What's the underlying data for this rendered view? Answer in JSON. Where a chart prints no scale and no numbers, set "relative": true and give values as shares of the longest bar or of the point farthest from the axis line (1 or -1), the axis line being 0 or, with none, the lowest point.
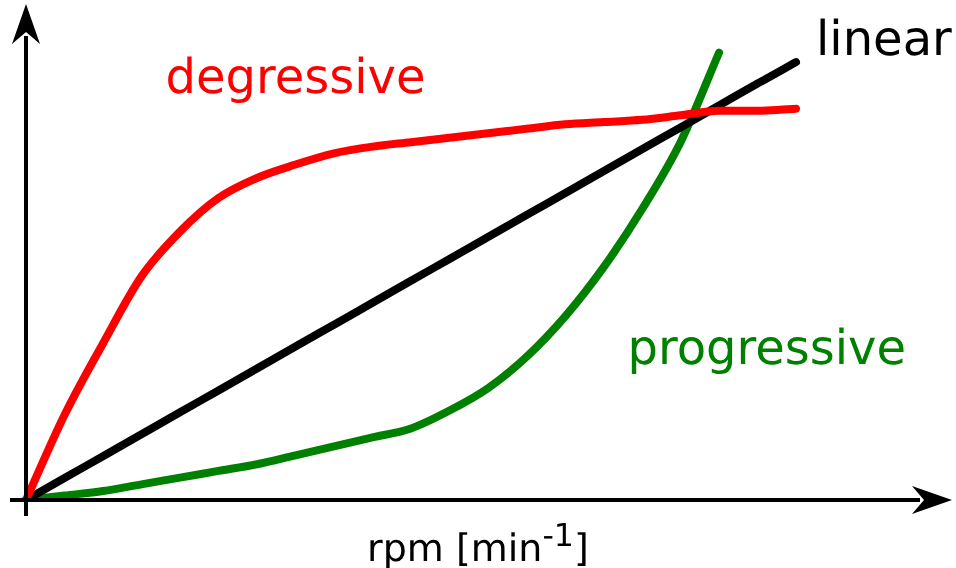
{
  "chart_data": {
    "type": "line",
    "relative": true,
    "xlabel": "rpm [min$^{-1}$]",
    "legend": false,
    "grid": false,
    "marker": "none",
    "line_style": "solid",
    "categories": [
      null,
      null,
      null,
      null,
      null,
      null,
      null,
      null,
      null,
      null,
      null,
      null,
      null,
      null,
      null,
      null,
      null,
      null,
      null,
      null,
      null,
      null,
      null,
      null,
      null
    ],
    "series": [
      {
        "name": "degressive",
        "color": "#ff0000",
        "values": [
          0,
          0.19,
          0.35,
          0.5,
          0.6,
          0.675,
          0.72,
          0.75,
          0.775,
          0.79,
          0.8,
          0.81,
          0.82,
          0.83,
          0.84,
          0.845,
          0.85,
          0.86,
          0.87,
          0.87,
          0.875,
          null,
          null,
          null,
          null
        ]
      },
      {
        "name": "linear",
        "color": "#000000",
        "values": [
          0,
          0.049,
          0.098,
          0.147,
          0.196,
          0.245,
          0.294,
          0.343,
          0.392,
          0.441,
          0.49,
          0.539,
          0.588,
          0.637,
          0.686,
          0.735,
          0.784,
          0.833,
          0.882,
          0.931,
          0.979,
          null,
          null,
          null,
          null
        ]
      },
      {
        "name": "progressive",
        "color": "#008000",
        "values": [
          0,
          0.01,
          0.02,
          0.035,
          0.05,
          0.065,
          0.08,
          0.1,
          0.12,
          0.14,
          0.16,
          0.2,
          0.25,
          0.32,
          0.41,
          0.52,
          0.65,
          0.8,
          1,
          null,
          null,
          null,
          null,
          null,
          null
        ]
      }
    ]
  }
}
